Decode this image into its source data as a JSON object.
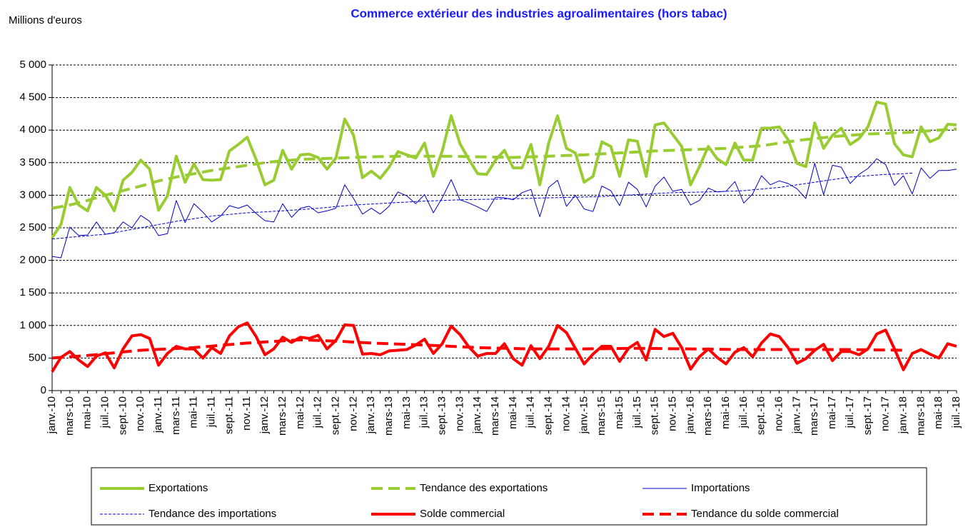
{
  "chart_data": {
    "type": "line",
    "title": "Commerce extérieur des industries agroalimentaires (hors tabac)",
    "y_label": "Millions d'euros",
    "categories": [
      "janv.-10",
      null,
      "mars-10",
      null,
      "mai-10",
      null,
      "juil.-10",
      null,
      "sept.-10",
      null,
      "nov.-10",
      null,
      "janv.-11",
      null,
      "mars-11",
      null,
      "mai-11",
      null,
      "juil.-11",
      null,
      "sept.-11",
      null,
      "nov.-11",
      null,
      "janv.-12",
      null,
      "mars-12",
      null,
      "mai-12",
      null,
      "juil.-12",
      null,
      "sept.-12",
      null,
      "nov.-12",
      null,
      "janv.-13",
      null,
      "mars-13",
      null,
      "mai-13",
      null,
      "juil.-13",
      null,
      "sept.-13",
      null,
      "nov.-13",
      null,
      "janv.-14",
      null,
      "mars-14",
      null,
      "mai-14",
      null,
      "juil.-14",
      null,
      "sept.-14",
      null,
      "nov.-14",
      null,
      "janv.-15",
      null,
      "mars-15",
      null,
      "mai-15",
      null,
      "juil.-15",
      null,
      "sept.-15",
      null,
      "nov.-15",
      null,
      "janv.-16",
      null,
      "mars-16",
      null,
      "mai-16",
      null,
      "juil.-16",
      null,
      "sept.-16",
      null,
      "nov.-16",
      null,
      "janv.-17",
      null,
      "mars-17",
      null,
      "mai-17",
      null,
      "juil.-17",
      null,
      "sept.-17",
      null,
      "nov.-17",
      null,
      "janv.-18",
      null,
      "mars-18",
      null,
      "mai-18",
      null,
      "juil.-18"
    ],
    "ylim": [
      0,
      5000
    ],
    "yticks": [
      0,
      500,
      {
        "value": 1000,
        "label": "1 000"
      },
      {
        "value": 1500,
        "label": "1 500"
      },
      {
        "value": 2000,
        "label": "2 000"
      },
      {
        "value": 2500,
        "label": "2 500"
      },
      {
        "value": 3000,
        "label": "3 000"
      },
      {
        "value": 3500,
        "label": "3 500"
      },
      {
        "value": 4000,
        "label": "4 000"
      },
      {
        "value": 4500,
        "label": "4 500"
      },
      {
        "value": 5000,
        "label": "5 000"
      }
    ],
    "grid": true,
    "series": [
      {
        "name": "Exportations",
        "color": "#99cc33",
        "width": 4,
        "dash": "solid",
        "values": [
          2350,
          2550,
          3120,
          2850,
          2760,
          3120,
          3000,
          2760,
          3230,
          3350,
          3540,
          3400,
          2770,
          2990,
          3600,
          3200,
          3480,
          3240,
          3230,
          3240,
          3680,
          3780,
          3890,
          3550,
          3160,
          3230,
          3690,
          3400,
          3620,
          3630,
          3580,
          3400,
          3570,
          4170,
          3920,
          3270,
          3370,
          3260,
          3430,
          3670,
          3620,
          3570,
          3800,
          3290,
          3680,
          4220,
          3790,
          3550,
          3330,
          3320,
          3540,
          3690,
          3420,
          3420,
          3780,
          3160,
          3800,
          4220,
          3720,
          3650,
          3200,
          3290,
          3820,
          3750,
          3290,
          3850,
          3830,
          3290,
          4080,
          4110,
          3930,
          3750,
          3160,
          3440,
          3750,
          3560,
          3470,
          3800,
          3540,
          3540,
          4030,
          4030,
          4050,
          3850,
          3490,
          3440,
          4110,
          3720,
          3920,
          4030,
          3780,
          3870,
          4050,
          4430,
          4400,
          3790,
          3620,
          3590,
          4050,
          3820,
          3880,
          4090,
          4080
        ]
      },
      {
        "name": "Tendance des exportations",
        "color": "#99cc33",
        "width": 4,
        "dash": "dashed",
        "values": [
          2800,
          2825,
          2850,
          2885,
          2920,
          2960,
          3000,
          3035,
          3070,
          3105,
          3140,
          3180,
          3220,
          3250,
          3280,
          3305,
          3330,
          3355,
          3380,
          3400,
          3420,
          3440,
          3460,
          3480,
          3500,
          3515,
          3530,
          3540,
          3550,
          3555,
          3560,
          3565,
          3570,
          3575,
          3580,
          3585,
          3590,
          3593,
          3595,
          3598,
          3600,
          3600,
          3600,
          3600,
          3600,
          3598,
          3595,
          3593,
          3590,
          3588,
          3585,
          3583,
          3580,
          3585,
          3590,
          3595,
          3600,
          3605,
          3610,
          3615,
          3620,
          3628,
          3635,
          3643,
          3650,
          3658,
          3665,
          3673,
          3680,
          3685,
          3690,
          3695,
          3700,
          3705,
          3710,
          3715,
          3720,
          3730,
          3740,
          3750,
          3760,
          3780,
          3800,
          3820,
          3840,
          3855,
          3870,
          3885,
          3900,
          3910,
          3920,
          3930,
          3940,
          3945,
          3950,
          3955,
          3960,
          3970,
          3980,
          3990,
          4000,
          4010,
          4020
        ]
      },
      {
        "name": "Importations",
        "color": "#0000cc",
        "width": 1,
        "dash": "solid",
        "values": [
          2060,
          2040,
          2510,
          2380,
          2390,
          2590,
          2400,
          2420,
          2590,
          2500,
          2690,
          2600,
          2380,
          2410,
          2920,
          2580,
          2870,
          2740,
          2590,
          2680,
          2840,
          2800,
          2850,
          2720,
          2610,
          2590,
          2870,
          2660,
          2800,
          2830,
          2730,
          2760,
          2800,
          3160,
          2950,
          2710,
          2800,
          2710,
          2830,
          3050,
          2990,
          2870,
          3010,
          2730,
          2960,
          3240,
          2930,
          2880,
          2820,
          2750,
          2970,
          2960,
          2930,
          3040,
          3090,
          2670,
          3120,
          3230,
          2830,
          3000,
          2790,
          2750,
          3140,
          3070,
          2840,
          3200,
          3090,
          2820,
          3140,
          3280,
          3060,
          3090,
          2850,
          2920,
          3110,
          3050,
          3060,
          3210,
          2880,
          3020,
          3300,
          3160,
          3220,
          3180,
          3100,
          2950,
          3490,
          3010,
          3460,
          3430,
          3180,
          3320,
          3410,
          3560,
          3470,
          3150,
          3300,
          3020,
          3420,
          3260,
          3380,
          3380,
          3400
        ]
      },
      {
        "name": "Tendance des importations",
        "color": "#0000cc",
        "width": 1,
        "dash": "dotted",
        "values": [
          2330,
          2340,
          2355,
          2365,
          2375,
          2390,
          2400,
          2425,
          2450,
          2475,
          2500,
          2525,
          2550,
          2575,
          2600,
          2620,
          2640,
          2660,
          2680,
          2693,
          2705,
          2718,
          2730,
          2738,
          2745,
          2753,
          2760,
          2770,
          2780,
          2790,
          2800,
          2813,
          2825,
          2838,
          2850,
          2858,
          2865,
          2873,
          2880,
          2888,
          2895,
          2903,
          2910,
          2915,
          2920,
          2925,
          2930,
          2933,
          2935,
          2938,
          2940,
          2943,
          2947,
          2950,
          2953,
          2957,
          2960,
          2963,
          2967,
          2970,
          2973,
          2977,
          2980,
          2988,
          2995,
          3003,
          3010,
          3018,
          3025,
          3033,
          3040,
          3043,
          3045,
          3048,
          3050,
          3055,
          3060,
          3065,
          3070,
          3083,
          3095,
          3108,
          3120,
          3140,
          3160,
          3180,
          3200,
          3220,
          3240,
          3260,
          3280,
          3290,
          3300,
          3310,
          3320,
          3325,
          3330,
          3340,
          null,
          null,
          null,
          null,
          null
        ]
      },
      {
        "name": "Solde commercial",
        "color": "#ff0000",
        "width": 4,
        "dash": "solid",
        "values": [
          290,
          510,
          600,
          470,
          370,
          530,
          580,
          350,
          640,
          840,
          860,
          800,
          390,
          570,
          680,
          640,
          640,
          500,
          660,
          570,
          840,
          980,
          1040,
          830,
          550,
          640,
          820,
          740,
          820,
          800,
          850,
          640,
          770,
          1010,
          1000,
          560,
          570,
          550,
          610,
          620,
          630,
          700,
          790,
          570,
          720,
          990,
          860,
          670,
          530,
          570,
          570,
          720,
          490,
          390,
          690,
          490,
          680,
          1000,
          890,
          650,
          410,
          560,
          680,
          680,
          450,
          650,
          740,
          470,
          940,
          830,
          880,
          660,
          330,
          520,
          640,
          510,
          410,
          590,
          660,
          520,
          730,
          870,
          830,
          660,
          420,
          490,
          620,
          710,
          460,
          600,
          600,
          550,
          640,
          870,
          930,
          640,
          320,
          570,
          630,
          560,
          500,
          720,
          680
        ]
      },
      {
        "name": "Tendance du solde commercial",
        "color": "#ff0000",
        "width": 4,
        "dash": "dashed",
        "values": [
          500,
          510,
          520,
          530,
          540,
          553,
          567,
          580,
          593,
          607,
          620,
          627,
          633,
          640,
          647,
          653,
          660,
          672,
          683,
          695,
          707,
          718,
          730,
          738,
          747,
          755,
          763,
          772,
          780,
          775,
          770,
          765,
          760,
          753,
          745,
          738,
          730,
          725,
          720,
          715,
          710,
          705,
          700,
          693,
          687,
          680,
          673,
          667,
          660,
          657,
          653,
          650,
          647,
          643,
          640,
          640,
          640,
          640,
          640,
          640,
          640,
          642,
          643,
          645,
          647,
          648,
          650,
          648,
          647,
          645,
          643,
          642,
          640,
          638,
          637,
          635,
          633,
          632,
          630,
          630,
          630,
          630,
          630,
          630,
          630,
          630,
          630,
          630,
          630,
          630,
          630,
          628,
          627,
          625,
          623,
          622,
          620,
          null,
          null,
          null,
          null,
          null,
          null
        ]
      }
    ]
  }
}
